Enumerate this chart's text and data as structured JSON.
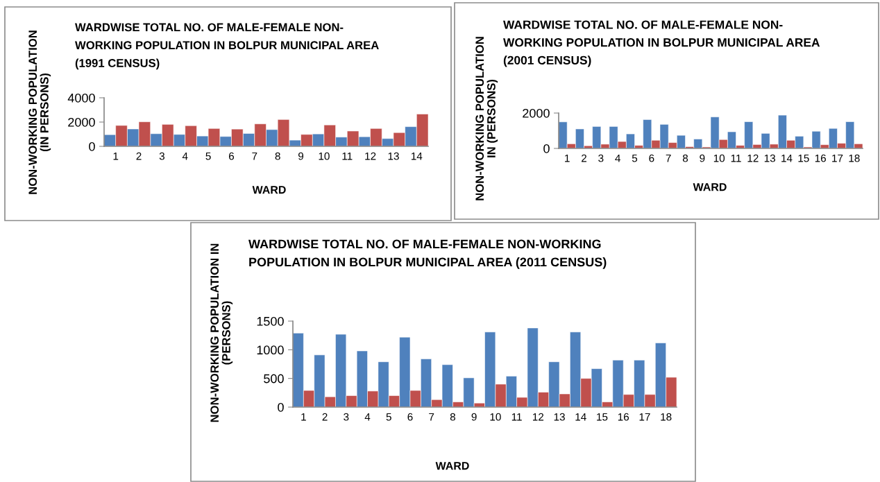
{
  "chart_data": [
    {
      "type": "bar",
      "title": "WARDWISE TOTAL NO. OF MALE-FEMALE NON-\nWORKING POPULATION IN BOLPUR MUNICIPAL AREA\n(1991 CENSUS)",
      "xlabel": "WARD",
      "ylabel": "NON-WORKING POPULATION\n(IN PERSONS)",
      "categories": [
        "1",
        "2",
        "3",
        "4",
        "5",
        "6",
        "7",
        "8",
        "9",
        "10",
        "11",
        "12",
        "13",
        "14"
      ],
      "series": [
        {
          "color": "#4f81bd",
          "values": [
            960,
            1430,
            1040,
            980,
            850,
            810,
            1060,
            1380,
            510,
            1020,
            760,
            790,
            640,
            1620
          ]
        },
        {
          "color": "#c0504d",
          "values": [
            1720,
            2020,
            1810,
            1700,
            1470,
            1420,
            1850,
            2210,
            980,
            1760,
            1260,
            1470,
            1130,
            2660
          ]
        }
      ],
      "ylim": [
        0,
        4000
      ],
      "yticks": [
        0,
        2000,
        4000
      ]
    },
    {
      "type": "bar",
      "title": "WARDWISE TOTAL NO. OF MALE-FEMALE NON-\nWORKING POPULATION IN BOLPUR MUNICIPAL AREA\n(2001 CENSUS)",
      "xlabel": "WARD",
      "ylabel": "NON-WORKING POPULATION\nIN (PERSONS)",
      "categories": [
        "1",
        "2",
        "3",
        "4",
        "5",
        "6",
        "7",
        "8",
        "9",
        "10",
        "11",
        "12",
        "13",
        "14",
        "15",
        "16",
        "17",
        "18"
      ],
      "series": [
        {
          "color": "#4f81bd",
          "values": [
            1500,
            1100,
            1240,
            1240,
            820,
            1630,
            1360,
            740,
            530,
            1780,
            940,
            1510,
            850,
            1880,
            690,
            970,
            1130,
            1510
          ]
        },
        {
          "color": "#c0504d",
          "values": [
            260,
            150,
            240,
            390,
            170,
            460,
            330,
            100,
            80,
            500,
            170,
            220,
            240,
            460,
            80,
            210,
            290,
            260
          ]
        }
      ],
      "ylim": [
        0,
        2000
      ],
      "yticks": [
        0,
        2000
      ]
    },
    {
      "type": "bar",
      "title": "WARDWISE TOTAL NO. OF MALE-FEMALE NON-WORKING\nPOPULATION IN BOLPUR MUNICIPAL AREA (2011 CENSUS)",
      "xlabel": "WARD",
      "ylabel": "NON-WORKING POPULATION IN\n(PERSONS)",
      "categories": [
        "1",
        "2",
        "3",
        "4",
        "5",
        "6",
        "7",
        "8",
        "9",
        "10",
        "11",
        "12",
        "13",
        "14",
        "15",
        "16",
        "17",
        "18"
      ],
      "series": [
        {
          "color": "#4f81bd",
          "values": [
            1290,
            910,
            1270,
            980,
            790,
            1220,
            840,
            740,
            510,
            1310,
            540,
            1380,
            790,
            1310,
            670,
            820,
            820,
            1120
          ]
        },
        {
          "color": "#c0504d",
          "values": [
            290,
            180,
            200,
            280,
            200,
            290,
            130,
            90,
            70,
            400,
            170,
            260,
            230,
            500,
            90,
            220,
            220,
            520
          ]
        }
      ],
      "ylim": [
        0,
        1500
      ],
      "yticks": [
        0,
        500,
        1000,
        1500
      ]
    }
  ]
}
